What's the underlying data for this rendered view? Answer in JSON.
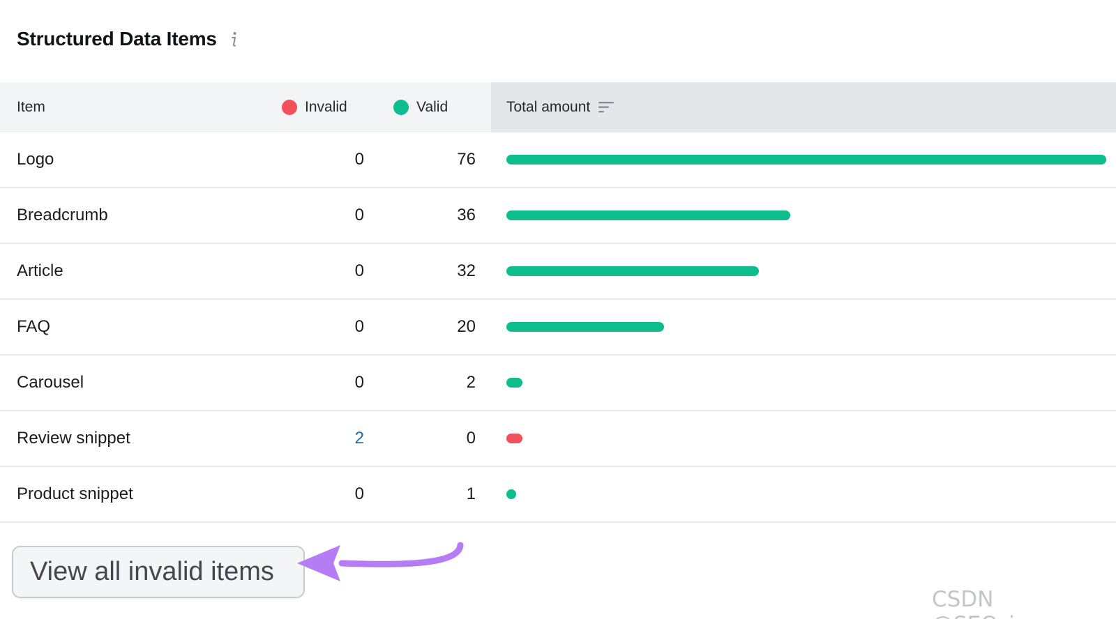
{
  "header": {
    "title": "Structured Data Items",
    "info_icon": "info-icon"
  },
  "table": {
    "columns": {
      "item": "Item",
      "invalid": "Invalid",
      "valid": "Valid",
      "total": "Total amount"
    },
    "max_total": 76,
    "rows": [
      {
        "name": "Logo",
        "invalid": "0",
        "valid": "76",
        "total": 76,
        "status": "valid"
      },
      {
        "name": "Breadcrumb",
        "invalid": "0",
        "valid": "36",
        "total": 36,
        "status": "valid"
      },
      {
        "name": "Article",
        "invalid": "0",
        "valid": "32",
        "total": 32,
        "status": "valid"
      },
      {
        "name": "FAQ",
        "invalid": "0",
        "valid": "20",
        "total": 20,
        "status": "valid"
      },
      {
        "name": "Carousel",
        "invalid": "0",
        "valid": "2",
        "total": 2,
        "status": "valid"
      },
      {
        "name": "Review snippet",
        "invalid": "2",
        "valid": "0",
        "total": 2,
        "status": "invalid"
      },
      {
        "name": "Product snippet",
        "invalid": "0",
        "valid": "1",
        "total": 1,
        "status": "valid"
      }
    ]
  },
  "cta": {
    "label": "View all invalid items"
  },
  "watermark": "CSDN @SEO_juper",
  "colors": {
    "valid": "#0dbd8b",
    "invalid": "#f2505a",
    "link": "#1a6fb3",
    "arrow": "#b57cf5"
  }
}
